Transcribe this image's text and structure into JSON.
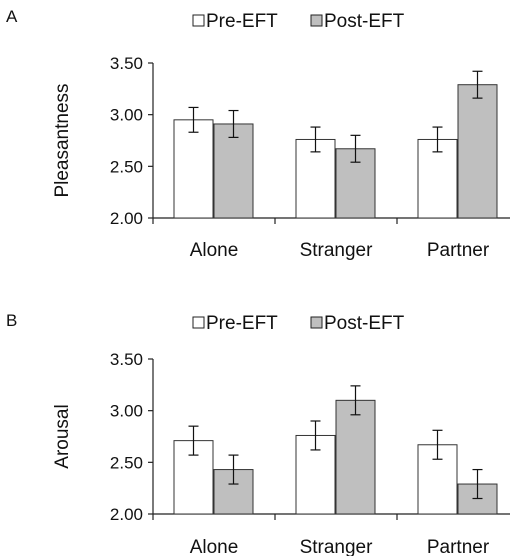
{
  "chart_data": [
    {
      "type": "bar",
      "panel": "A",
      "categories": [
        "Alone",
        "Stranger",
        "Partner"
      ],
      "series": [
        {
          "name": "Pre-EFT",
          "color": "#ffffff",
          "values": [
            2.95,
            2.76,
            2.76
          ],
          "errors": [
            0.12,
            0.12,
            0.12
          ]
        },
        {
          "name": "Post-EFT",
          "color": "#bfbfbf",
          "values": [
            2.91,
            2.67,
            3.29
          ],
          "errors": [
            0.13,
            0.13,
            0.13
          ]
        }
      ],
      "ylabel": "Pleasantness",
      "ylim": [
        2.0,
        3.5
      ],
      "yticks": [
        "2.00",
        "2.50",
        "3.00",
        "3.50"
      ],
      "legend": "top-center",
      "grid": false
    },
    {
      "type": "bar",
      "panel": "B",
      "categories": [
        "Alone",
        "Stranger",
        "Partner"
      ],
      "series": [
        {
          "name": "Pre-EFT",
          "color": "#ffffff",
          "values": [
            2.71,
            2.76,
            2.67
          ],
          "errors": [
            0.14,
            0.14,
            0.14
          ]
        },
        {
          "name": "Post-EFT",
          "color": "#bfbfbf",
          "values": [
            2.43,
            3.1,
            2.29
          ],
          "errors": [
            0.14,
            0.14,
            0.14
          ]
        }
      ],
      "ylabel": "Arousal",
      "ylim": [
        2.0,
        3.5
      ],
      "yticks": [
        "2.00",
        "2.50",
        "3.00",
        "3.50"
      ],
      "legend": "top-center",
      "grid": false
    }
  ]
}
